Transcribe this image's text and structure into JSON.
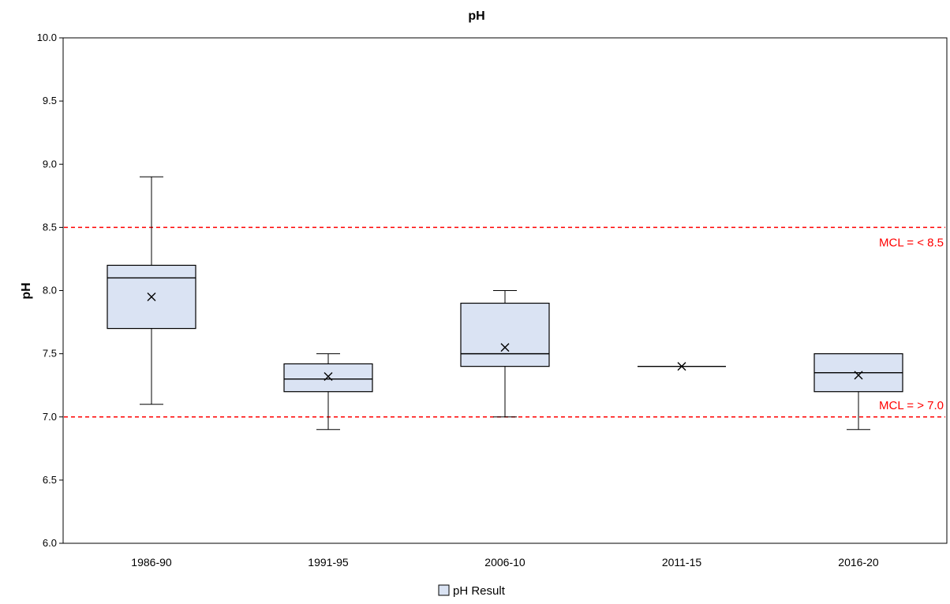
{
  "chart_data": {
    "type": "box",
    "title": "pH",
    "xlabel": "",
    "ylabel": "pH",
    "ylim": [
      6.0,
      10.0
    ],
    "yticks": [
      "6.0",
      "6.5",
      "7.0",
      "7.5",
      "8.0",
      "8.5",
      "9.0",
      "9.5",
      "10.0"
    ],
    "grid": false,
    "legend": {
      "position": "bottom",
      "entries": [
        "pH Result"
      ]
    },
    "categories": [
      "1986-90",
      "1991-95",
      "2006-10",
      "2011-15",
      "2016-20"
    ],
    "series": [
      {
        "name": "pH Result",
        "color": "#dae3f3",
        "boxes": [
          {
            "category": "1986-90",
            "min": 7.1,
            "q1": 7.7,
            "median": 8.1,
            "q3": 8.2,
            "max": 8.9,
            "mean": 7.95
          },
          {
            "category": "1991-95",
            "min": 6.9,
            "q1": 7.2,
            "median": 7.3,
            "q3": 7.42,
            "max": 7.5,
            "mean": 7.32
          },
          {
            "category": "2006-10",
            "min": 7.0,
            "q1": 7.4,
            "median": 7.5,
            "q3": 7.9,
            "max": 8.0,
            "mean": 7.55
          },
          {
            "category": "2011-15",
            "min": 7.4,
            "q1": 7.4,
            "median": 7.4,
            "q3": 7.4,
            "max": 7.4,
            "mean": 7.4
          },
          {
            "category": "2016-20",
            "min": 6.9,
            "q1": 7.2,
            "median": 7.35,
            "q3": 7.5,
            "max": 7.5,
            "mean": 7.33
          }
        ]
      }
    ],
    "reference_lines": [
      {
        "value": 8.5,
        "label": "MCL = < 8.5",
        "color": "#ff0000",
        "style": "dashed"
      },
      {
        "value": 7.0,
        "label": "MCL = > 7.0",
        "color": "#ff0000",
        "style": "dashed"
      }
    ]
  }
}
